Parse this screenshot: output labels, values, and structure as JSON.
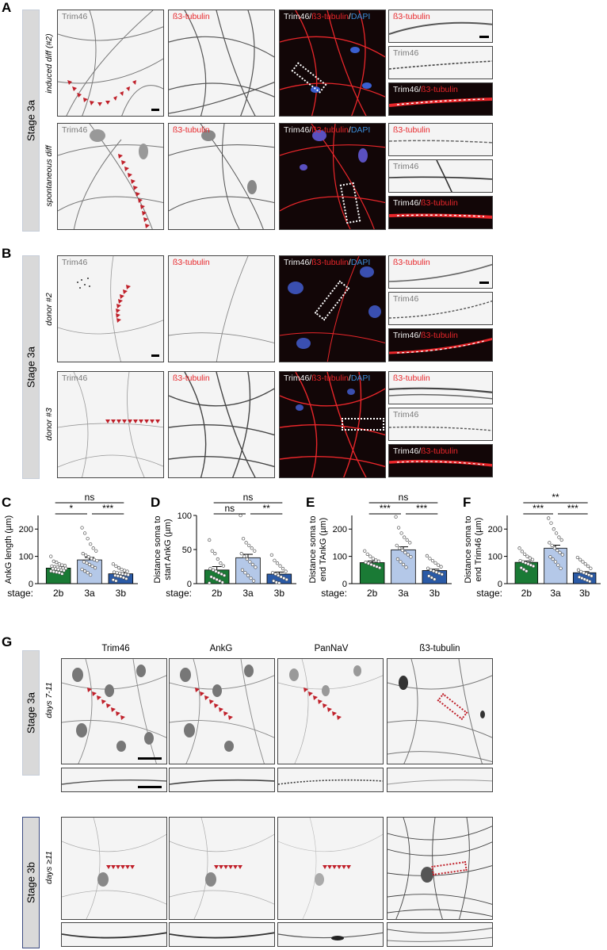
{
  "figure": {
    "panel_letters": [
      "A",
      "B",
      "C",
      "D",
      "E",
      "F",
      "G"
    ],
    "colors": {
      "arrowhead": "#c0202a",
      "trim46": "#7a7a7a",
      "tubulin": "#e8262a",
      "dapi": "#3a8bd6",
      "stage2b": "#1a7a35",
      "stage3a": "#b4c8e8",
      "stage3b": "#2a5aa6"
    }
  },
  "panel_A": {
    "stage": "Stage 3a",
    "rows": [
      {
        "condition": "induced diff (#2)",
        "top_label": "ß3-tubulin",
        "mid_label": "Trim46",
        "bottom_label": [
          "Trim46/",
          "ß3-tubulin"
        ]
      },
      {
        "condition": "spontaneous diff",
        "top_label": "ß3-tubulin",
        "mid_label": "Trim46",
        "bottom_label": [
          "Trim46/",
          "ß3-tubulin"
        ]
      }
    ],
    "channels": [
      "Trim46",
      "ß3-tubulin"
    ],
    "merge_label": [
      "Trim46/",
      "ß3-tubulin",
      "/",
      "DAPI"
    ]
  },
  "panel_B": {
    "stage": "Stage 3a",
    "rows": [
      {
        "condition": "donor #2"
      },
      {
        "condition": "donor #3"
      }
    ],
    "channels": [
      "Trim46",
      "ß3-tubulin"
    ],
    "merge_label": [
      "Trim46/",
      "ß3-tubulin",
      "/",
      "DAPI"
    ],
    "crop_labels": {
      "top": "ß3-tubulin",
      "mid": "Trim46",
      "bottom": [
        "Trim46/",
        "ß3-tubulin"
      ]
    }
  },
  "stage_axis_label": "stage:",
  "chart_data": [
    {
      "panel": "C",
      "type": "bar",
      "ylabel": "AnkG length (µm)",
      "categories": [
        "2b",
        "3a",
        "3b"
      ],
      "values": [
        57,
        87,
        36
      ],
      "sem": [
        4,
        9,
        4
      ],
      "ylim": [
        0,
        250
      ],
      "yticks": [
        0,
        100,
        200
      ],
      "points": [
        [
          100,
          82,
          78,
          72,
          68,
          66,
          64,
          62,
          60,
          58,
          57,
          56,
          55,
          54,
          52,
          50,
          48,
          46,
          44,
          42,
          40,
          36
        ],
        [
          205,
          185,
          165,
          145,
          130,
          120,
          110,
          104,
          98,
          92,
          88,
          84,
          80,
          76,
          70,
          64,
          58,
          52,
          46,
          40,
          32
        ],
        [
          72,
          64,
          58,
          52,
          48,
          45,
          42,
          40,
          38,
          36,
          34,
          32,
          30,
          28,
          26,
          22,
          18,
          14,
          10
        ]
      ],
      "significance": [
        {
          "pair": [
            0,
            2
          ],
          "label": "ns"
        },
        {
          "pair": [
            0,
            1
          ],
          "label": "*"
        },
        {
          "pair": [
            1,
            2
          ],
          "label": "***"
        }
      ]
    },
    {
      "panel": "D",
      "type": "bar",
      "ylabel": "Distance soma to start AnkG (µm)",
      "categories": [
        "2b",
        "3a",
        "3b"
      ],
      "values": [
        20,
        38,
        14
      ],
      "sem": [
        5,
        5,
        3
      ],
      "ylim": [
        0,
        100
      ],
      "yticks": [
        0,
        50,
        100
      ],
      "points": [
        [
          64,
          48,
          44,
          36,
          30,
          26,
          22,
          20,
          18,
          16,
          14,
          12,
          10,
          8,
          6,
          4,
          2,
          1
        ],
        [
          100,
          66,
          60,
          56,
          52,
          48,
          44,
          40,
          36,
          32,
          28,
          24,
          20,
          16,
          12,
          8,
          4
        ],
        [
          42,
          34,
          30,
          26,
          22,
          18,
          16,
          14,
          12,
          10,
          8,
          6,
          4,
          2,
          1
        ]
      ],
      "significance": [
        {
          "pair": [
            0,
            2
          ],
          "label": "ns"
        },
        {
          "pair": [
            0,
            1
          ],
          "label": "ns"
        },
        {
          "pair": [
            1,
            2
          ],
          "label": "**"
        }
      ]
    },
    {
      "panel": "E",
      "type": "bar",
      "ylabel": "Distance soma to end TAnkG (µm)",
      "categories": [
        "2b",
        "3a",
        "3b"
      ],
      "values": [
        77,
        124,
        48
      ],
      "sem": [
        6,
        11,
        5
      ],
      "ylim": [
        0,
        250
      ],
      "yticks": [
        0,
        100,
        200
      ],
      "points": [
        [
          120,
          108,
          100,
          92,
          86,
          82,
          78,
          74,
          70,
          66,
          62,
          58
        ],
        [
          245,
          205,
          185,
          170,
          160,
          150,
          140,
          130,
          122,
          114,
          106,
          98,
          90,
          80,
          70,
          60
        ],
        [
          102,
          92,
          84,
          76,
          68,
          62,
          56,
          50,
          46,
          42,
          38,
          34,
          28,
          22,
          16
        ]
      ],
      "significance": [
        {
          "pair": [
            0,
            2
          ],
          "label": "ns"
        },
        {
          "pair": [
            0,
            1
          ],
          "label": "***"
        },
        {
          "pair": [
            1,
            2
          ],
          "label": "***"
        }
      ]
    },
    {
      "panel": "F",
      "type": "bar",
      "ylabel": "Distance soma to end Trim46 (µm)",
      "categories": [
        "2b",
        "3a",
        "3b"
      ],
      "values": [
        78,
        130,
        40
      ],
      "sem": [
        5,
        11,
        4
      ],
      "ylim": [
        0,
        250
      ],
      "yticks": [
        0,
        100,
        200
      ],
      "points": [
        [
          130,
          118,
          108,
          100,
          94,
          88,
          84,
          80,
          76,
          72,
          68,
          64,
          58,
          52,
          46
        ],
        [
          240,
          222,
          200,
          185,
          170,
          160,
          150,
          140,
          130,
          122,
          114,
          106,
          98,
          90,
          80,
          68,
          56
        ],
        [
          96,
          88,
          80,
          72,
          64,
          56,
          50,
          44,
          40,
          36,
          32,
          28,
          24,
          20,
          16,
          12,
          8
        ]
      ],
      "significance": [
        {
          "pair": [
            0,
            2
          ],
          "label": "**"
        },
        {
          "pair": [
            0,
            1
          ],
          "label": "***"
        },
        {
          "pair": [
            1,
            2
          ],
          "label": "***"
        }
      ]
    }
  ],
  "panel_G": {
    "columns": [
      "Trim46",
      "AnkG",
      "PanNaV",
      "ß3-tubulin"
    ],
    "rows": [
      {
        "stage": "Stage 3a",
        "days": "days 7-11"
      },
      {
        "stage": "Stage 3b",
        "days": "days ≥11"
      }
    ]
  }
}
